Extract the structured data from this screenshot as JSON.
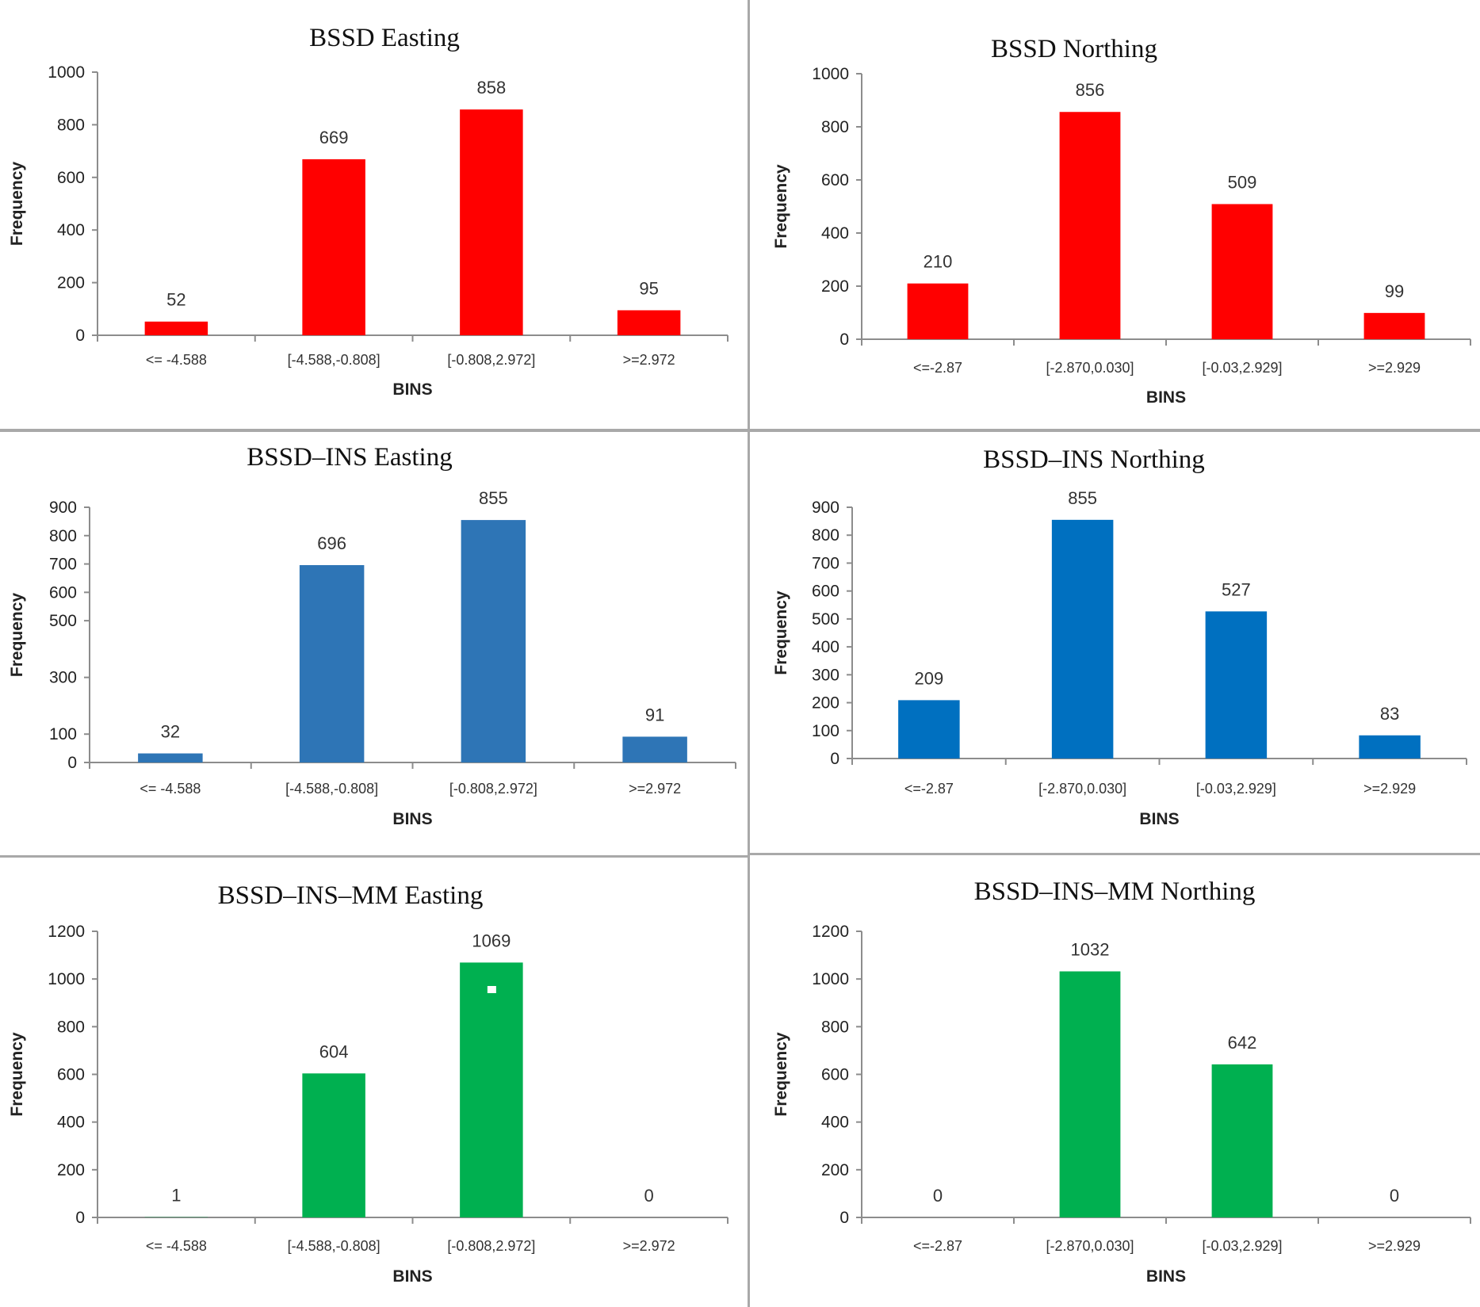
{
  "chart_data": [
    {
      "type": "bar",
      "title": "BSSD Easting",
      "xlabel": "BINS",
      "ylabel": "Frequency",
      "categories": [
        "<= -4.588",
        "[-4.588,-0.808]",
        "[-0.808,2.972]",
        ">=2.972"
      ],
      "values": [
        52,
        669,
        858,
        95
      ],
      "data_labels": [
        "52",
        "669",
        "858",
        "95"
      ],
      "ylim": [
        0,
        1000
      ],
      "yticks": [
        0,
        200,
        400,
        600,
        800,
        1000
      ],
      "color": "#ff0000",
      "grid": false,
      "legend": "none"
    },
    {
      "type": "bar",
      "title": "BSSD Northing",
      "xlabel": "BINS",
      "ylabel": "Frequency",
      "categories": [
        "<=-2.87",
        "[-2.870,0.030]",
        "[-0.03,2.929]",
        ">=2.929"
      ],
      "values": [
        210,
        856,
        509,
        99
      ],
      "data_labels": [
        "210",
        "856",
        "509",
        "99"
      ],
      "ylim": [
        0,
        1000
      ],
      "yticks": [
        0,
        200,
        400,
        600,
        800,
        1000
      ],
      "color": "#ff0000",
      "grid": false,
      "legend": "none"
    },
    {
      "type": "bar",
      "title": "BSSD–INS Easting",
      "xlabel": "BINS",
      "ylabel": "Frequency",
      "ylabel_visible_fragments": [
        "F",
        "uency"
      ],
      "categories": [
        "<= -4.588",
        "[-4.588,-0.808]",
        "[-0.808,2.972]",
        ">=2.972"
      ],
      "values": [
        32,
        696,
        855,
        91
      ],
      "data_labels": [
        "32",
        "696",
        "855",
        "91"
      ],
      "ylim": [
        0,
        900
      ],
      "yticks": [
        0,
        100,
        300,
        500,
        600,
        700,
        800,
        900
      ],
      "color": "#2e75b6",
      "grid": false,
      "legend": "none"
    },
    {
      "type": "bar",
      "title": "BSSD–INS Northing",
      "xlabel": "BINS",
      "ylabel": "Frequency",
      "categories": [
        "<=-2.87",
        "[-2.870,0.030]",
        "[-0.03,2.929]",
        ">=2.929"
      ],
      "values": [
        209,
        855,
        527,
        83
      ],
      "data_labels": [
        "209",
        "855",
        "527",
        "83"
      ],
      "ylim": [
        0,
        900
      ],
      "yticks": [
        0,
        100,
        200,
        300,
        400,
        500,
        600,
        700,
        800,
        900
      ],
      "color": "#0070c0",
      "grid": false,
      "legend": "none"
    },
    {
      "type": "bar",
      "title": "BSSD–INS–MM Easting",
      "xlabel": "BINS",
      "ylabel": "Frequency",
      "categories": [
        "<= -4.588",
        "[-4.588,-0.808]",
        "[-0.808,2.972]",
        ">=2.972"
      ],
      "values": [
        1,
        604,
        1069,
        0
      ],
      "data_labels": [
        "1",
        "604",
        "1069",
        "0"
      ],
      "ylim": [
        0,
        1200
      ],
      "yticks": [
        0,
        200,
        400,
        600,
        800,
        1000,
        1200
      ],
      "color": "#00b050",
      "grid": false,
      "legend": "none"
    },
    {
      "type": "bar",
      "title": "BSSD–INS–MM Northing",
      "xlabel": "BINS",
      "ylabel": "Frequency",
      "categories": [
        "<=-2.87",
        "[-2.870,0.030]",
        "[-0.03,2.929]",
        ">=2.929"
      ],
      "values": [
        0,
        1032,
        642,
        0
      ],
      "data_labels": [
        "0",
        "1032",
        "642",
        "0"
      ],
      "ylim": [
        0,
        1200
      ],
      "yticks": [
        0,
        200,
        400,
        600,
        800,
        1000,
        1200
      ],
      "color": "#00b050",
      "grid": false,
      "legend": "none"
    }
  ]
}
